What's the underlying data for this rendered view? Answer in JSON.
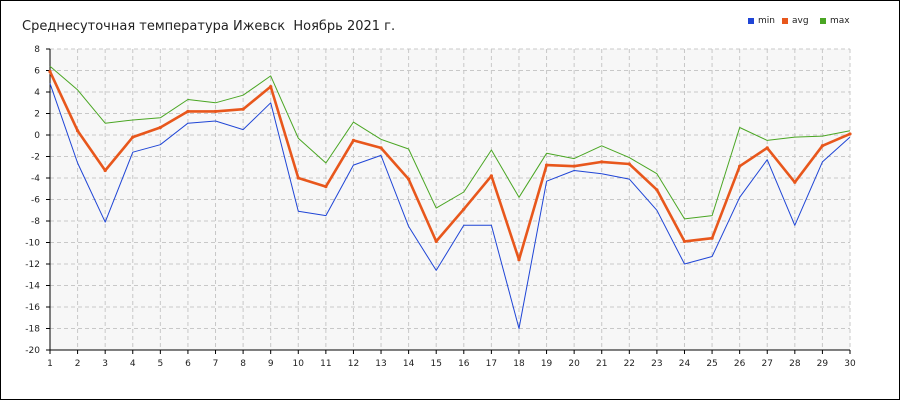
{
  "window": {
    "title": "Среднесуточная температура Ижевск  Ноябрь 2021 г."
  },
  "colors": {
    "min": "#1f45d6",
    "avg": "#e8571c",
    "max": "#4aa623",
    "grid": "#c8c8c8",
    "plot_bg": "#f7f7f7"
  },
  "chart_data": {
    "type": "line",
    "title": "Среднесуточная температура Ижевск  Ноябрь 2021 г.",
    "xlabel": "",
    "ylabel": "",
    "x": [
      1,
      2,
      3,
      4,
      5,
      6,
      7,
      8,
      9,
      10,
      11,
      12,
      13,
      14,
      15,
      16,
      17,
      18,
      19,
      20,
      21,
      22,
      23,
      24,
      25,
      26,
      27,
      28,
      29,
      30
    ],
    "xlim": [
      1,
      30
    ],
    "ylim": [
      -20,
      8
    ],
    "y_ticks": [
      8,
      6,
      4,
      2,
      0,
      -2,
      -4,
      -6,
      -8,
      -10,
      -12,
      -14,
      -16,
      -18,
      -20
    ],
    "grid": true,
    "legend_position": "top-right",
    "series": [
      {
        "name": "min",
        "values": [
          4.8,
          -2.6,
          -8.1,
          -1.6,
          -0.9,
          1.1,
          1.3,
          0.5,
          3.0,
          -7.1,
          -7.5,
          -2.8,
          -1.9,
          -8.5,
          -12.6,
          -8.4,
          -8.4,
          -18.0,
          -4.3,
          -3.3,
          -3.6,
          -4.1,
          -7.0,
          -12.0,
          -11.3,
          -5.8,
          -2.3,
          -8.4,
          -2.5,
          -0.2
        ]
      },
      {
        "name": "avg",
        "values": [
          5.9,
          0.4,
          -3.3,
          -0.2,
          0.7,
          2.2,
          2.2,
          2.4,
          4.5,
          -4.0,
          -4.8,
          -0.5,
          -1.2,
          -4.1,
          -9.9,
          -6.9,
          -3.8,
          -11.6,
          -2.8,
          -2.9,
          -2.5,
          -2.7,
          -5.1,
          -9.9,
          -9.6,
          -2.9,
          -1.2,
          -4.4,
          -1.0,
          0.1
        ]
      },
      {
        "name": "max",
        "values": [
          6.4,
          4.2,
          1.1,
          1.4,
          1.6,
          3.3,
          3.0,
          3.7,
          5.5,
          -0.3,
          -2.6,
          1.2,
          -0.4,
          -1.3,
          -6.8,
          -5.3,
          -1.4,
          -5.8,
          -1.7,
          -2.2,
          -1.0,
          -2.1,
          -3.6,
          -7.8,
          -7.5,
          0.7,
          -0.5,
          -0.2,
          -0.1,
          0.4
        ]
      }
    ]
  }
}
